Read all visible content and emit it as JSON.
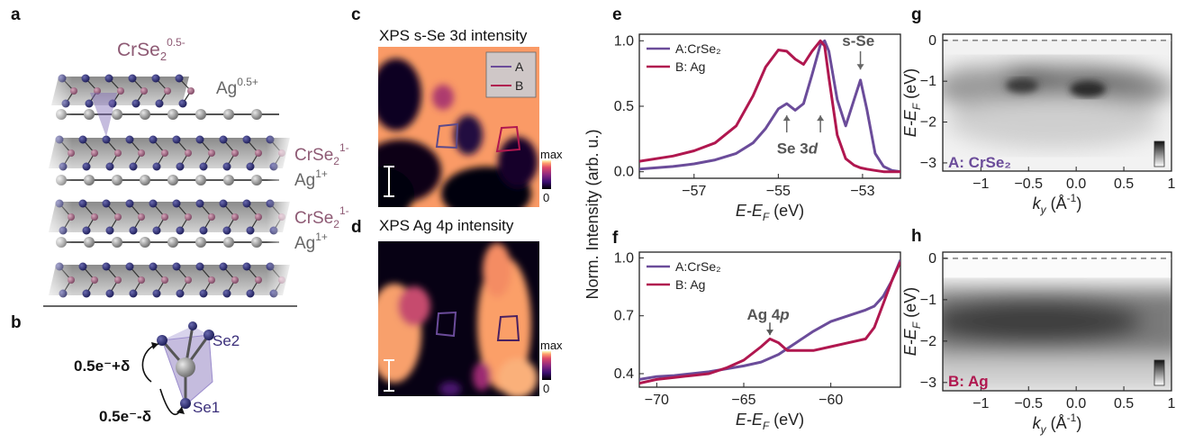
{
  "panels": {
    "a": "a",
    "b": "b",
    "c": "c",
    "d": "d",
    "e": "e",
    "f": "f",
    "g": "g",
    "h": "h"
  },
  "colors": {
    "purple": "#6b4c9a",
    "crimson": "#b0174f",
    "gray": "#777777",
    "se_dark": "#2a2a66",
    "cr": "#8e5a74"
  },
  "structure": {
    "top_label": "CrSe",
    "top_sub": "2",
    "top_sup": "0.5-",
    "ag_top": "Ag",
    "ag_top_sup": "0.5+",
    "layer1_label": "CrSe",
    "layer1_sub": "2",
    "layer1_sup": "1-",
    "ag1": "Ag",
    "ag1_sup": "1+",
    "layer2_label": "CrSe",
    "layer2_sub": "2",
    "layer2_sup": "1-",
    "ag2": "Ag",
    "ag2_sup": "1+"
  },
  "tetra": {
    "se2": "Se2",
    "se1": "Se1",
    "plus": "0.5e⁻+δ",
    "minus": "0.5e⁻-δ"
  },
  "maps": {
    "c_title": "XPS s-Se 3d  intensity",
    "d_title": "XPS Ag 4p  intensity",
    "legend_a": "A",
    "legend_b": "B",
    "cbar_max": "max",
    "cbar_min": "0"
  },
  "chart_data": [
    {
      "panel": "e",
      "type": "line",
      "xlabel": "E-E_F (eV)",
      "ylabel": "Norm. Intensity (arb. u.)",
      "xlim": [
        -58.3,
        -52.1
      ],
      "ylim": [
        -0.05,
        1.05
      ],
      "xticks": [
        -57,
        -55,
        -53
      ],
      "yticks": [
        0.0,
        0.5,
        1.0
      ],
      "legend_placement": "top-left",
      "annotations": [
        "Se 3d",
        "s-Se"
      ],
      "series": [
        {
          "name": "A:CrSe₂",
          "color": "#6b4c9a",
          "x": [
            -58.3,
            -57.5,
            -57.0,
            -56.5,
            -56.0,
            -55.6,
            -55.3,
            -55.0,
            -54.8,
            -54.6,
            -54.4,
            -54.2,
            -54.0,
            -53.9,
            -53.8,
            -53.6,
            -53.4,
            -53.2,
            -53.05,
            -52.9,
            -52.7,
            -52.5,
            -52.3,
            -52.1
          ],
          "y": [
            0.02,
            0.04,
            0.06,
            0.09,
            0.14,
            0.22,
            0.33,
            0.48,
            0.52,
            0.47,
            0.52,
            0.74,
            0.97,
            1.0,
            0.92,
            0.55,
            0.35,
            0.55,
            0.7,
            0.48,
            0.14,
            0.04,
            0.01,
            0.0
          ]
        },
        {
          "name": "B: Ag",
          "color": "#b0174f",
          "x": [
            -58.3,
            -57.5,
            -57.0,
            -56.5,
            -56.0,
            -55.6,
            -55.3,
            -55.0,
            -54.8,
            -54.6,
            -54.4,
            -54.2,
            -54.0,
            -53.9,
            -53.8,
            -53.6,
            -53.4,
            -53.2,
            -53.05,
            -52.9,
            -52.7,
            -52.5,
            -52.3,
            -52.1
          ],
          "y": [
            0.08,
            0.12,
            0.16,
            0.22,
            0.35,
            0.58,
            0.8,
            0.93,
            0.92,
            0.86,
            0.82,
            0.92,
            1.0,
            0.96,
            0.72,
            0.28,
            0.1,
            0.05,
            0.03,
            0.02,
            0.01,
            0.0,
            0.0,
            0.0
          ]
        }
      ]
    },
    {
      "panel": "f",
      "type": "line",
      "xlabel": "E-E_F (eV)",
      "ylabel": "",
      "xlim": [
        -71,
        -56
      ],
      "ylim": [
        0.33,
        1.03
      ],
      "xticks": [
        -70,
        -65,
        -60
      ],
      "yticks": [
        0.4,
        0.7,
        1.0
      ],
      "legend_placement": "top-left",
      "annotations": [
        "Ag 4p"
      ],
      "series": [
        {
          "name": "A:CrSe₂",
          "color": "#6b4c9a",
          "x": [
            -71,
            -70,
            -69,
            -68,
            -67,
            -66,
            -65,
            -64,
            -63,
            -62,
            -61,
            -60,
            -59,
            -58,
            -57.5,
            -57,
            -56.5,
            -56
          ],
          "y": [
            0.37,
            0.385,
            0.39,
            0.4,
            0.41,
            0.425,
            0.44,
            0.46,
            0.5,
            0.56,
            0.62,
            0.67,
            0.7,
            0.73,
            0.75,
            0.8,
            0.88,
            0.99
          ]
        },
        {
          "name": "B: Ag",
          "color": "#b0174f",
          "x": [
            -71,
            -70,
            -69,
            -68,
            -67,
            -66,
            -65,
            -64,
            -63.5,
            -63,
            -62.5,
            -62,
            -61,
            -60,
            -59,
            -58,
            -57.5,
            -57,
            -56.5,
            -56
          ],
          "y": [
            0.35,
            0.37,
            0.38,
            0.39,
            0.4,
            0.43,
            0.47,
            0.54,
            0.58,
            0.56,
            0.52,
            0.52,
            0.52,
            0.54,
            0.56,
            0.58,
            0.64,
            0.76,
            0.88,
            0.98
          ]
        }
      ]
    },
    {
      "panel": "g",
      "type": "heatmap",
      "label": "A: CrSe₂",
      "xlabel": "k_y (Å⁻¹)",
      "ylabel": "E-E_F (eV)",
      "xlim": [
        -1.4,
        1.0
      ],
      "ylim": [
        -3.2,
        0.15
      ],
      "xticks": [
        -1.0,
        -0.5,
        0.0,
        0.5,
        1.0
      ],
      "yticks": [
        0,
        -1,
        -2,
        -3
      ]
    },
    {
      "panel": "h",
      "type": "heatmap",
      "label": "B: Ag",
      "xlabel": "k_y (Å⁻¹)",
      "ylabel": "E-E_F (eV)",
      "xlim": [
        -1.4,
        1.0
      ],
      "ylim": [
        -3.2,
        0.15
      ],
      "xticks": [
        -1.0,
        -0.5,
        0.0,
        0.5,
        1.0
      ],
      "yticks": [
        0,
        -1,
        -2,
        -3
      ]
    }
  ]
}
